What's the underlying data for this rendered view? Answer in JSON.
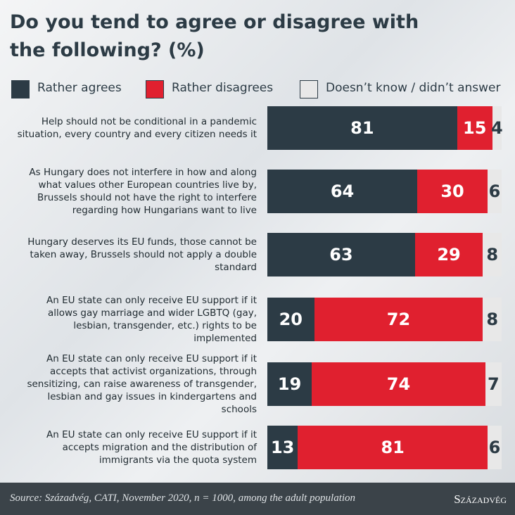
{
  "chart_data": {
    "type": "bar",
    "orientation": "horizontal",
    "stacked": true,
    "title": "Do you tend to agree or disagree with the following? (%)",
    "categories": [
      "Help should not be conditional in a pandemic situation, every country and every citizen needs it",
      "As Hungary does not interfere in how and along what values other European countries live by, Brussels should not have the right to interfere regarding how Hungarians want to live",
      "Hungary deserves its EU funds, those cannot be taken away, Brussels should not apply a double standard",
      "An EU state can only receive EU support if it allows gay marriage and wider LGBTQ (gay, lesbian,  transgender, etc.) rights to be implemented",
      "An EU state can only receive EU support if it accepts that activist organizations, through sensitizing, can raise awareness of transgender, lesbian and gay issues in kindergartens and schools",
      "An EU state can only receive EU support if it accepts migration and the distribution of immigrants via the quota system"
    ],
    "series": [
      {
        "name": "Rather agrees",
        "color": "#2c3b45",
        "label_color": "#ffffff",
        "values": [
          81,
          64,
          63,
          20,
          19,
          13
        ]
      },
      {
        "name": "Rather disagrees",
        "color": "#e0202f",
        "label_color": "#ffffff",
        "values": [
          15,
          30,
          29,
          72,
          74,
          81
        ]
      },
      {
        "name": "Doesn’t know / didn’t answer",
        "color": "#e8e8e8",
        "label_color": "#2c3b45",
        "values": [
          4,
          6,
          8,
          8,
          7,
          6
        ]
      }
    ],
    "xlim": [
      0,
      100
    ],
    "source": "Source: Századvég, CATI, November 2020, n = 1000, among the adult population",
    "logo": "Századvég"
  }
}
